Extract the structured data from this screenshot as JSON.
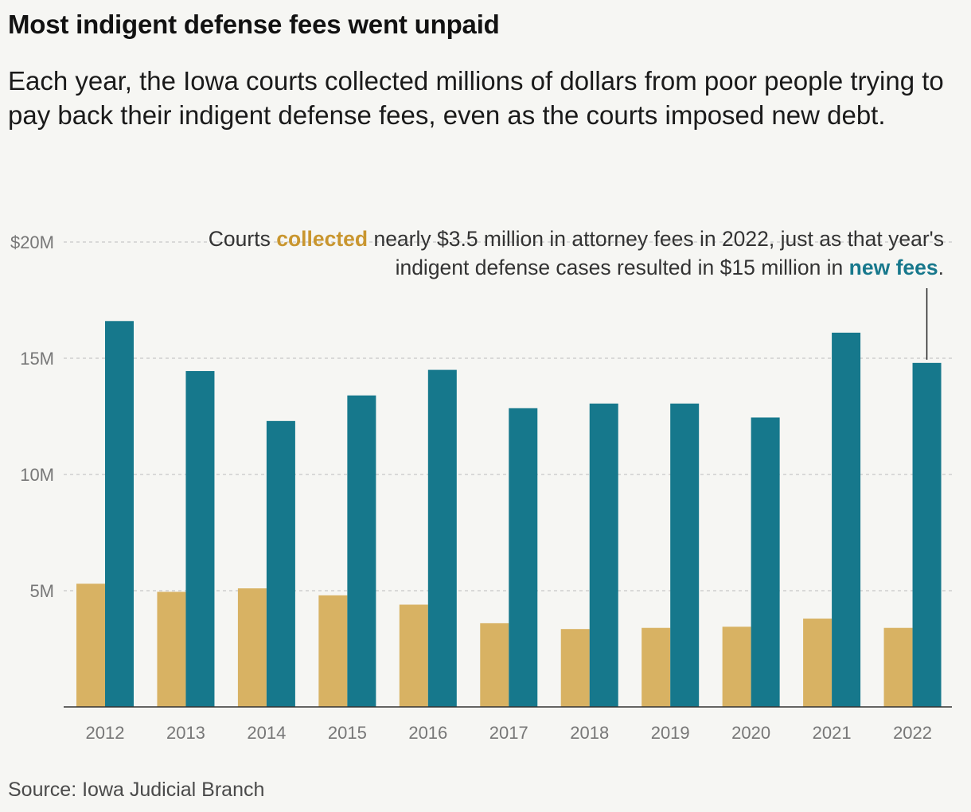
{
  "title": "Most indigent defense fees went unpaid",
  "subtitle": "Each year, the Iowa courts collected millions of dollars from poor people trying to pay back their indigent defense fees, even as the courts imposed new debt.",
  "annotation": {
    "part1": "Courts ",
    "collected_word": "collected",
    "part2": " nearly $3.5 million in attorney fees in 2022, just as that year's indigent defense cases resulted in $15 million in ",
    "new_fees_word": "new fees",
    "part3": "."
  },
  "source": "Source: Iowa Judicial Branch",
  "colors": {
    "collected": "#d8b263",
    "new_fees": "#16788c",
    "gridline": "#c8c8c8",
    "axis": "#333333",
    "tick_text": "#777777"
  },
  "chart_data": {
    "type": "bar",
    "categories": [
      "2012",
      "2013",
      "2014",
      "2015",
      "2016",
      "2017",
      "2018",
      "2019",
      "2020",
      "2021",
      "2022"
    ],
    "series": [
      {
        "name": "collected",
        "values": [
          5.3,
          4.95,
          5.1,
          4.8,
          4.4,
          3.6,
          3.35,
          3.4,
          3.45,
          3.8,
          3.4
        ]
      },
      {
        "name": "new fees",
        "values": [
          16.6,
          14.45,
          12.3,
          13.4,
          14.5,
          12.85,
          13.05,
          13.05,
          12.45,
          16.1,
          14.8
        ]
      }
    ],
    "y_ticks": [
      {
        "value": 5,
        "label": "5M"
      },
      {
        "value": 10,
        "label": "10M"
      },
      {
        "value": 15,
        "label": "15M"
      },
      {
        "value": 20,
        "label": "$20M"
      }
    ],
    "ylim": [
      0,
      20
    ],
    "grid": true,
    "annotated_category": "2022"
  }
}
